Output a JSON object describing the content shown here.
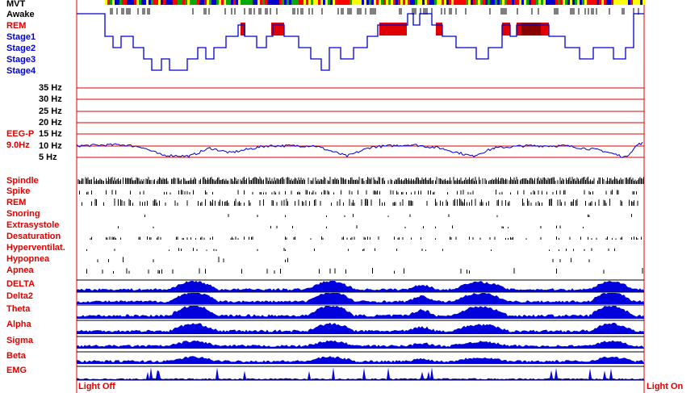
{
  "colors": {
    "red": "#e00000",
    "blue": "#0000cc",
    "black": "#000000",
    "bar_blue": "#0000dd"
  },
  "chart_data": {
    "type": "hypnogram",
    "hypnogram": {
      "labels": [
        {
          "text": "MVT",
          "color": "#000000"
        },
        {
          "text": "Awake",
          "color": "#000000"
        },
        {
          "text": "REM",
          "color": "#e00000"
        },
        {
          "text": "Stage1",
          "color": "#0000cc"
        },
        {
          "text": "Stage2",
          "color": "#0000cc"
        },
        {
          "text": "Stage3",
          "color": "#0000cc"
        },
        {
          "text": "Stage4",
          "color": "#0000cc"
        }
      ]
    },
    "eeg_peak": {
      "label": "EEG-P",
      "value_label": "9.0Hz",
      "ticks": [
        "35 Hz",
        "30 Hz",
        "25 Hz",
        "20 Hz",
        "15 Hz",
        "10 Hz",
        "5 Hz"
      ],
      "tick_values": [
        35,
        30,
        25,
        20,
        15,
        10,
        5
      ]
    },
    "events": [
      {
        "label": "Spindle"
      },
      {
        "label": "Spike"
      },
      {
        "label": "REM"
      },
      {
        "label": "Snoring"
      },
      {
        "label": "Extrasystole"
      },
      {
        "label": "Desaturation"
      },
      {
        "label": "Hyperventilat."
      },
      {
        "label": "Hypopnea"
      },
      {
        "label": "Apnea"
      }
    ],
    "bands": [
      {
        "label": "DELTA"
      },
      {
        "label": "Delta2"
      },
      {
        "label": "Theta"
      },
      {
        "label": "Alpha"
      },
      {
        "label": "Sigma"
      },
      {
        "label": "Beta"
      },
      {
        "label": "EMG"
      }
    ]
  },
  "footer": {
    "left": "Light Off",
    "right": "Light On"
  }
}
